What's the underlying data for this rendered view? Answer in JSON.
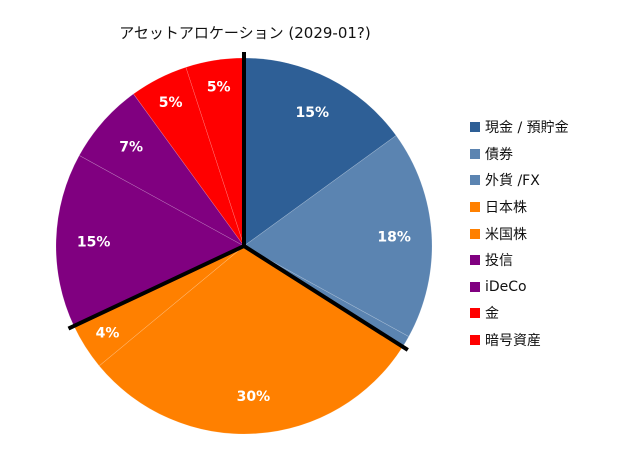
{
  "chart_data": {
    "type": "pie",
    "title": "アセットアロケーション (2029-01?)",
    "start_angle_deg": 0,
    "direction": "clockwise",
    "slices": [
      {
        "label": "現金 / 預貯金",
        "value": 15,
        "display": "15%",
        "color": "#2e5f96"
      },
      {
        "label": "債券",
        "value": 18,
        "display": "18%",
        "color": "#5b84b1"
      },
      {
        "label": "外貨 /FX",
        "value": 1,
        "display": "",
        "color": "#5b84b1"
      },
      {
        "label": "日本株",
        "value": 30,
        "display": "30%",
        "color": "#ff8000"
      },
      {
        "label": "米国株",
        "value": 4,
        "display": "4%",
        "color": "#ff8000"
      },
      {
        "label": "投信",
        "value": 15,
        "display": "15%",
        "color": "#800080"
      },
      {
        "label": "iDeCo",
        "value": 7,
        "display": "7%",
        "color": "#800080"
      },
      {
        "label": "金",
        "value": 5,
        "display": "5%",
        "color": "#ff0000"
      },
      {
        "label": "暗号資産",
        "value": 5,
        "display": "5%",
        "color": "#ff0000"
      }
    ],
    "group_separators_after_index": [
      2,
      4
    ],
    "legend_position": "right"
  }
}
